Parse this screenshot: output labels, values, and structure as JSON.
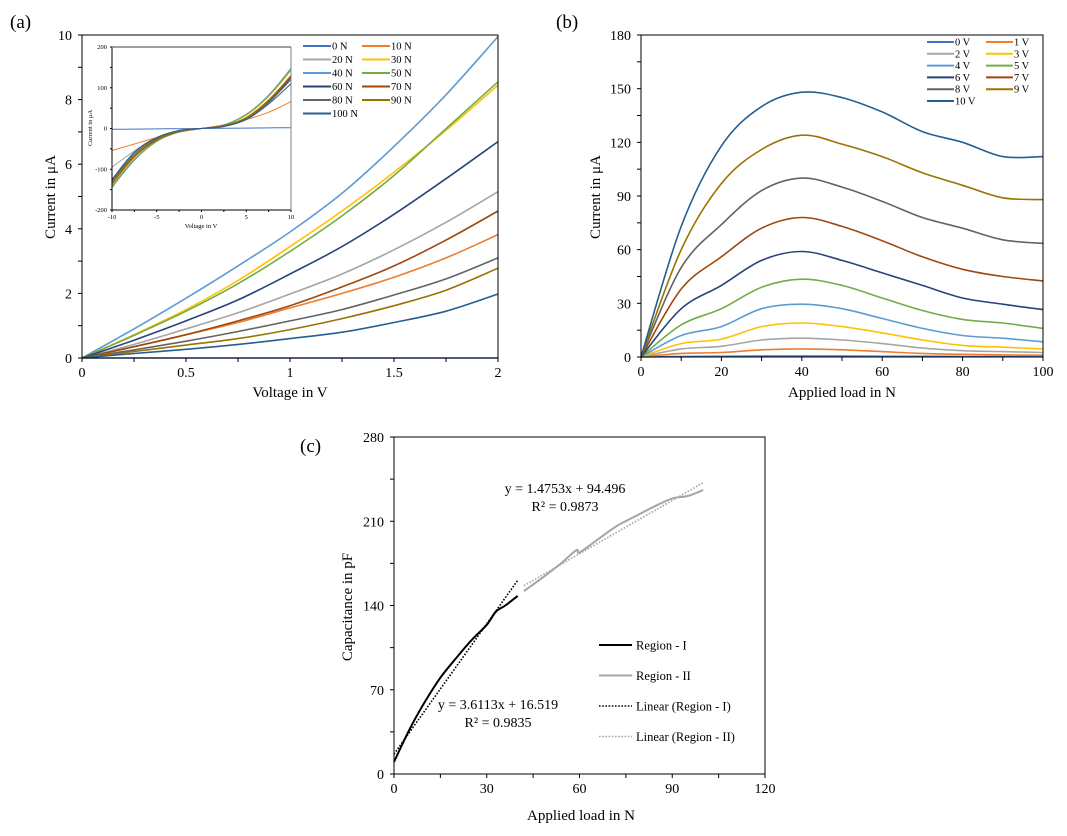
{
  "chart_data": [
    {
      "panel_label": "(a)",
      "type": "line",
      "title": "",
      "xlabel": "Voltage in V",
      "ylabel": "Current in μA",
      "xlim": [
        0,
        2
      ],
      "ylim": [
        0,
        10
      ],
      "xticks": [
        "0",
        "0.5",
        "1",
        "1.5",
        "2"
      ],
      "yticks": [
        "0",
        "2",
        "4",
        "6",
        "8",
        "10"
      ],
      "grid": false,
      "legend_position": "top-right",
      "x": [
        0,
        0.25,
        0.5,
        0.75,
        1.0,
        1.25,
        1.5,
        1.75,
        2.0
      ],
      "series": [
        {
          "name": "0 N",
          "color": "#4472C4",
          "values": [
            0,
            0,
            0,
            0,
            0,
            0,
            0,
            0,
            0
          ]
        },
        {
          "name": "10 N",
          "color": "#ED7D31",
          "values": [
            0,
            0.35,
            0.72,
            1.1,
            1.55,
            2.0,
            2.5,
            3.1,
            3.82
          ]
        },
        {
          "name": "20 N",
          "color": "#A5A5A5",
          "values": [
            0,
            0.42,
            0.9,
            1.4,
            1.98,
            2.6,
            3.35,
            4.2,
            5.15
          ]
        },
        {
          "name": "30 N",
          "color": "#FFC000",
          "values": [
            0,
            0.72,
            1.5,
            2.4,
            3.45,
            4.55,
            5.75,
            7.05,
            8.45
          ]
        },
        {
          "name": "40 N",
          "color": "#5B9BD5",
          "values": [
            0,
            0.9,
            1.85,
            2.85,
            3.9,
            5.1,
            6.55,
            8.15,
            9.95
          ]
        },
        {
          "name": "50 N",
          "color": "#70AD47",
          "values": [
            0,
            0.7,
            1.45,
            2.3,
            3.3,
            4.4,
            5.65,
            7.1,
            8.55
          ]
        },
        {
          "name": "60 N",
          "color": "#264478",
          "values": [
            0,
            0.55,
            1.15,
            1.8,
            2.6,
            3.45,
            4.45,
            5.55,
            6.7
          ]
        },
        {
          "name": "70 N",
          "color": "#9E480E",
          "values": [
            0,
            0.35,
            0.72,
            1.15,
            1.62,
            2.2,
            2.85,
            3.65,
            4.55
          ]
        },
        {
          "name": "80 N",
          "color": "#636363",
          "values": [
            0,
            0.25,
            0.52,
            0.82,
            1.15,
            1.5,
            1.95,
            2.45,
            3.1
          ]
        },
        {
          "name": "90 N",
          "color": "#997300",
          "values": [
            0,
            0.2,
            0.4,
            0.6,
            0.88,
            1.22,
            1.62,
            2.1,
            2.78
          ]
        },
        {
          "name": "100 N",
          "color": "#255E91",
          "values": [
            0,
            0.14,
            0.27,
            0.42,
            0.6,
            0.8,
            1.1,
            1.45,
            1.98
          ]
        }
      ],
      "inset": {
        "type": "line",
        "xlabel": "Voltage in V",
        "ylabel": "Current in μA",
        "xlim": [
          -10,
          10
        ],
        "ylim": [
          -200,
          200
        ],
        "xticks": [
          "-10",
          "-5",
          "0",
          "5",
          "10"
        ],
        "yticks": [
          "-200",
          "-100",
          "0",
          "100",
          "200"
        ],
        "x": [
          -10,
          -7.5,
          -5,
          -2.5,
          0,
          2.5,
          5,
          7.5,
          10
        ],
        "series": [
          {
            "name": "0 N",
            "color": "#4472C4",
            "values": [
              -2,
              -1.5,
              -1,
              -0.5,
              0,
              0.5,
              1,
              1.5,
              2
            ]
          },
          {
            "name": "10 N",
            "color": "#ED7D31",
            "values": [
              -54,
              -38,
              -22,
              -9,
              0,
              9,
              22,
              40,
              66
            ]
          },
          {
            "name": "20 N",
            "color": "#A5A5A5",
            "values": [
              -95,
              -55,
              -22,
              -6,
              0,
              6,
              22,
              62,
              125
            ]
          },
          {
            "name": "30 N",
            "color": "#FFC000",
            "values": [
              -140,
              -75,
              -30,
              -8,
              0,
              8,
              32,
              78,
              142
            ]
          },
          {
            "name": "40 N",
            "color": "#5B9BD5",
            "values": [
              -145,
              -78,
              -32,
              -9,
              0,
              9,
              35,
              82,
              148
            ]
          },
          {
            "name": "50 N",
            "color": "#70AD47",
            "values": [
              -142,
              -76,
              -31,
              -8,
              0,
              8,
              34,
              80,
              145
            ]
          },
          {
            "name": "60 N",
            "color": "#264478",
            "values": [
              -130,
              -66,
              -26,
              -6,
              0,
              6,
              25,
              66,
              125
            ]
          },
          {
            "name": "70 N",
            "color": "#9E480E",
            "values": [
              -136,
              -70,
              -28,
              -7,
              0,
              7,
              27,
              70,
              130
            ]
          },
          {
            "name": "80 N",
            "color": "#636363",
            "values": [
              -128,
              -62,
              -24,
              -5,
              0,
              5,
              24,
              64,
              120
            ]
          },
          {
            "name": "90 N",
            "color": "#997300",
            "values": [
              -132,
              -66,
              -26,
              -6,
              0,
              6,
              26,
              68,
              128
            ]
          },
          {
            "name": "100 N",
            "color": "#255E91",
            "values": [
              -125,
              -58,
              -22,
              -5,
              0,
              5,
              22,
              60,
              110
            ]
          }
        ]
      }
    },
    {
      "panel_label": "(b)",
      "type": "line",
      "title": "",
      "xlabel": "Applied load in N",
      "ylabel": "Current in μA",
      "xlim": [
        0,
        100
      ],
      "ylim": [
        0,
        180
      ],
      "xticks": [
        "0",
        "20",
        "40",
        "60",
        "80",
        "100"
      ],
      "yticks": [
        "0",
        "30",
        "60",
        "90",
        "120",
        "150",
        "180"
      ],
      "grid": false,
      "legend_position": "top-right",
      "x": [
        0,
        10,
        20,
        30,
        40,
        50,
        60,
        70,
        80,
        90,
        100
      ],
      "series": [
        {
          "name": "0 V",
          "color": "#4472C4",
          "values": [
            0,
            0.3,
            0.4,
            0.5,
            0.5,
            0.5,
            0.4,
            0.4,
            0.3,
            0.3,
            0.3
          ]
        },
        {
          "name": "1 V",
          "color": "#ED7D31",
          "values": [
            0,
            2,
            2.5,
            4,
            4.5,
            4,
            3,
            2,
            1.5,
            1.2,
            1
          ]
        },
        {
          "name": "2 V",
          "color": "#A5A5A5",
          "values": [
            0,
            4.5,
            6,
            9.5,
            10.5,
            9.5,
            7.5,
            5,
            3.5,
            3,
            2.5
          ]
        },
        {
          "name": "3 V",
          "color": "#FFC000",
          "values": [
            0,
            7.5,
            10,
            17,
            19,
            17,
            13.5,
            9.5,
            6.5,
            5.5,
            4.5
          ]
        },
        {
          "name": "4 V",
          "color": "#5B9BD5",
          "values": [
            0,
            12,
            17,
            27,
            29.5,
            27,
            21.5,
            16,
            12,
            10.5,
            8.5
          ]
        },
        {
          "name": "5 V",
          "color": "#70AD47",
          "values": [
            0,
            18,
            27,
            39,
            43.5,
            40,
            33,
            26,
            21,
            19,
            16
          ]
        },
        {
          "name": "6 V",
          "color": "#264478",
          "values": [
            0,
            27,
            40,
            54,
            59,
            54,
            47,
            40,
            33,
            29.5,
            26.5
          ]
        },
        {
          "name": "7 V",
          "color": "#9E480E",
          "values": [
            0,
            38,
            56,
            72,
            78,
            73,
            65,
            56,
            49,
            45,
            42.5
          ]
        },
        {
          "name": "8 V",
          "color": "#636363",
          "values": [
            0,
            50,
            74,
            93,
            100,
            95,
            87,
            78,
            72,
            65.5,
            63.5
          ]
        },
        {
          "name": "9 V",
          "color": "#997300",
          "values": [
            0,
            60,
            97,
            116,
            124,
            119,
            112,
            103,
            96,
            89,
            88
          ]
        },
        {
          "name": "10 V",
          "color": "#255E91",
          "values": [
            0,
            73,
            118,
            140,
            148,
            145,
            137,
            126,
            120,
            112,
            112
          ]
        }
      ]
    },
    {
      "panel_label": "(c)",
      "type": "line",
      "title": "",
      "xlabel": "Applied load in N",
      "ylabel": "Capacitance in pF",
      "xlim": [
        0,
        120
      ],
      "ylim": [
        0,
        280
      ],
      "xticks": [
        "0",
        "30",
        "60",
        "90",
        "120"
      ],
      "yticks": [
        "0",
        "70",
        "140",
        "210",
        "280"
      ],
      "grid": false,
      "legend_position": "bottom-right",
      "series": [
        {
          "name": "Region - I",
          "color": "#000000",
          "style": "solid",
          "x": [
            0,
            5,
            10,
            15,
            20,
            25,
            30,
            33,
            36,
            40
          ],
          "values": [
            10,
            37,
            60,
            80,
            96,
            111,
            124,
            135,
            140,
            148
          ]
        },
        {
          "name": "Region - II",
          "color": "#A5A5A5",
          "style": "solid",
          "x": [
            42,
            48,
            54,
            59,
            60,
            66,
            72,
            78,
            84,
            90,
            95,
            100
          ],
          "values": [
            152,
            163,
            175,
            186,
            184,
            195,
            206,
            214,
            222,
            229,
            231,
            236
          ]
        },
        {
          "name": "Linear (Region - I)",
          "color": "#000000",
          "style": "dotted",
          "x": [
            0,
            40
          ],
          "values": [
            16.519,
            160.971
          ]
        },
        {
          "name": "Linear (Region - II)",
          "color": "#A5A5A5",
          "style": "dotted",
          "x": [
            42,
            100
          ],
          "values": [
            156.459,
            242.026
          ]
        }
      ],
      "annotations": [
        {
          "text_line1": "y = 1.4753x + 94.496",
          "text_line2": "R² = 0.9873"
        },
        {
          "text_line1": "y = 3.6113x + 16.519",
          "text_line2": "R² = 0.9835"
        }
      ]
    }
  ]
}
